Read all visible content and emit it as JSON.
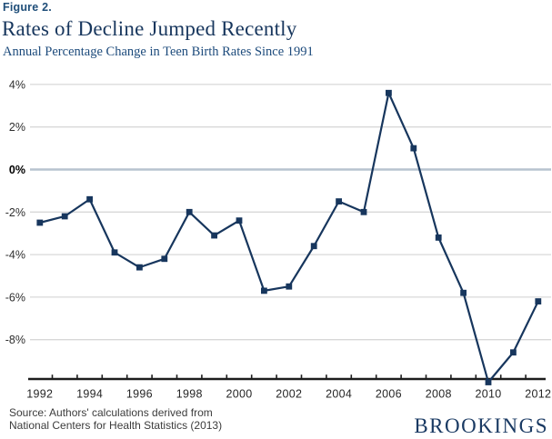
{
  "figure_label": "Figure 2.",
  "title": "Rates of Decline Jumped Recently",
  "subtitle": "Annual Percentage Change in Teen Birth Rates Since 1991",
  "source": {
    "line1": "Source: Authors' calculations derived from",
    "line2": "National Centers for Health Statistics (2013)"
  },
  "brand": "BROOKINGS",
  "colors": {
    "line": "#17365d",
    "marker": "#17365d",
    "gridline": "#d8d8d8",
    "zero_line": "#b7c3cf",
    "axis": "#1c1c1c",
    "title": "#17365d",
    "subtitle": "#1d4b7c",
    "figure_label": "#1f4e79",
    "brand": "#1a3a63"
  },
  "chart_data": {
    "type": "line",
    "title": "Rates of Decline Jumped Recently",
    "subtitle": "Annual Percentage Change in Teen Birth Rates Since 1991",
    "x": [
      1992,
      1993,
      1994,
      1995,
      1996,
      1997,
      1998,
      1999,
      2000,
      2001,
      2002,
      2003,
      2004,
      2005,
      2006,
      2007,
      2008,
      2009,
      2010,
      2011,
      2012
    ],
    "values": [
      -2.5,
      -2.2,
      -1.4,
      -3.9,
      -4.6,
      -4.2,
      -2.0,
      -3.1,
      -2.4,
      -5.7,
      -5.5,
      -3.6,
      -1.5,
      -2.0,
      3.6,
      1.0,
      -3.2,
      -5.8,
      -10.0,
      -8.6,
      -6.2
    ],
    "x_tick_labels": [
      "1992",
      "1994",
      "1996",
      "1998",
      "2000",
      "2002",
      "2004",
      "2006",
      "2008",
      "2010",
      "2012"
    ],
    "y_tick_values": [
      4,
      2,
      0,
      -2,
      -4,
      -6,
      -8
    ],
    "y_tick_labels": [
      "4%",
      "2%",
      "0%",
      "-2%",
      "-4%",
      "-6%",
      "-8%"
    ],
    "ylim": [
      -9.85,
      4.3
    ],
    "marker": "square",
    "grid": "horizontal",
    "legend": "none"
  }
}
